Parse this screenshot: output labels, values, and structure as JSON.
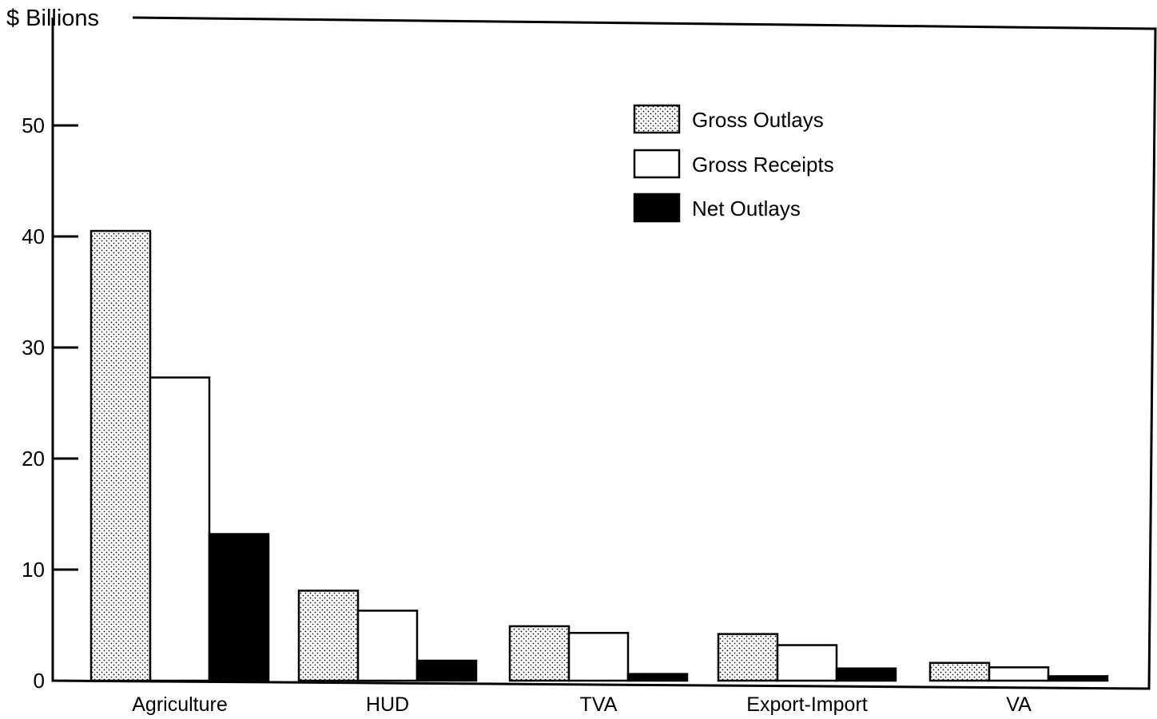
{
  "chart_data": {
    "type": "bar",
    "title": "",
    "ylabel": "$ Billions",
    "xlabel": "",
    "ylim": [
      0,
      55
    ],
    "yticks": [
      0,
      10,
      20,
      30,
      40,
      50
    ],
    "grid": false,
    "legend_position": "top-right",
    "categories": [
      "Agriculture",
      "HUD",
      "TVA",
      "Export-Import",
      "VA"
    ],
    "series": [
      {
        "name": "Gross Outlays",
        "pattern": "dotted",
        "fill": "#ffffff",
        "values": [
          40.5,
          8.1,
          4.9,
          4.2,
          1.6
        ]
      },
      {
        "name": "Gross Receipts",
        "pattern": "solid",
        "fill": "#ffffff",
        "values": [
          27.3,
          6.3,
          4.3,
          3.2,
          1.2
        ]
      },
      {
        "name": "Net Outlays",
        "pattern": "solid",
        "fill": "#000000",
        "values": [
          13.2,
          1.8,
          0.6,
          1.1,
          0.4
        ]
      }
    ]
  }
}
